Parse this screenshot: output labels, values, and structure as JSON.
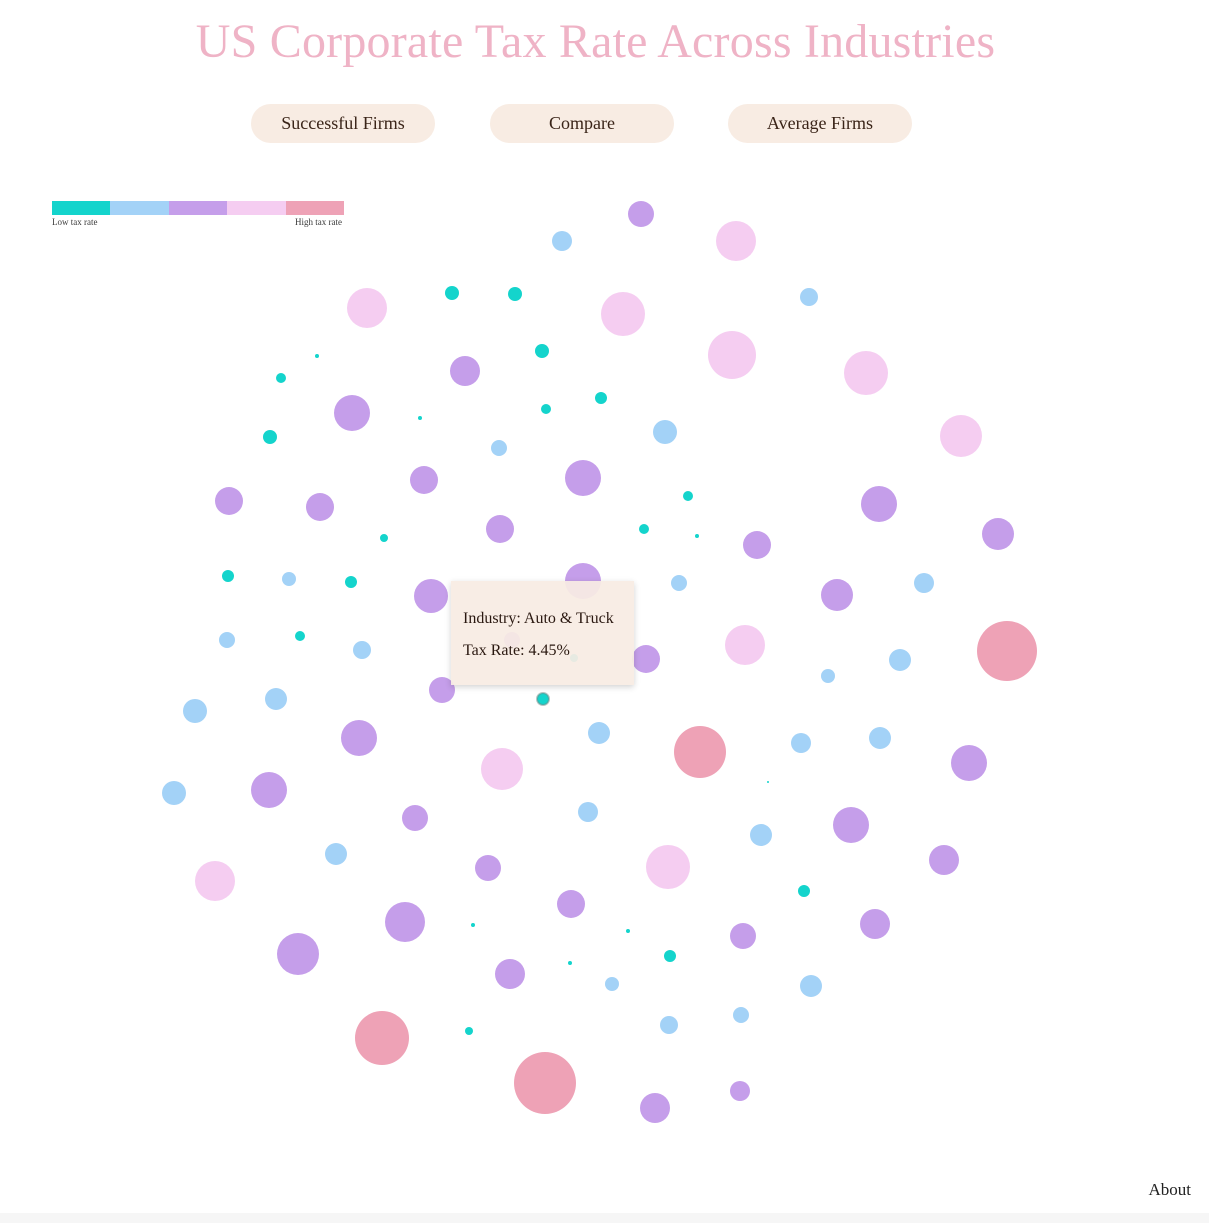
{
  "title": "US Corporate Tax Rate Across Industries",
  "nav": {
    "successful_label": "Successful Firms",
    "compare_label": "Compare",
    "average_label": "Average Firms"
  },
  "legend": {
    "low_label": "Low tax rate",
    "high_label": "High tax rate",
    "colors": [
      "#14d4cc",
      "#a3d2f7",
      "#c59eea",
      "#f5cdf1",
      "#eea2b6"
    ]
  },
  "tooltip": {
    "industry_label": "Industry: ",
    "industry_value": "Auto & Truck",
    "rate_label": "Tax Rate: ",
    "rate_value": "4.45%"
  },
  "about_label": "About",
  "chart_data": {
    "type": "scatter",
    "encoding": "bubble size and colour both show tax-rate level (1 = low … 5 = high)",
    "levels": [
      {
        "level": 1,
        "color": "#14d4cc"
      },
      {
        "level": 2,
        "color": "#a3d2f7"
      },
      {
        "level": 3,
        "color": "#c59eea"
      },
      {
        "level": 4,
        "color": "#f5cdf1"
      },
      {
        "level": 5,
        "color": "#eea2b6"
      }
    ],
    "highlighted_industry": "Auto & Truck",
    "highlighted_rate": 4.45,
    "bubble_levels": [
      3,
      2,
      4,
      2,
      4,
      1,
      1,
      4,
      1,
      4,
      4,
      1,
      1,
      3,
      1,
      1,
      3,
      2,
      1,
      2,
      4,
      1,
      3,
      3,
      3,
      3,
      3,
      3,
      1,
      1,
      1,
      3,
      3,
      3,
      1,
      3,
      1,
      2,
      1,
      2,
      3,
      3,
      4,
      3,
      5,
      2,
      1,
      2,
      2,
      3,
      2,
      2,
      2,
      1,
      3,
      3,
      2,
      5,
      2,
      2,
      3,
      3,
      2,
      3,
      3,
      2,
      2,
      2,
      4,
      2,
      3,
      4,
      3,
      1,
      3,
      4,
      3,
      1,
      1,
      1,
      3,
      3,
      3,
      2,
      2,
      2,
      1,
      5,
      1,
      5,
      3,
      2,
      3,
      1,
      3,
      2,
      2,
      4,
      3
    ]
  }
}
